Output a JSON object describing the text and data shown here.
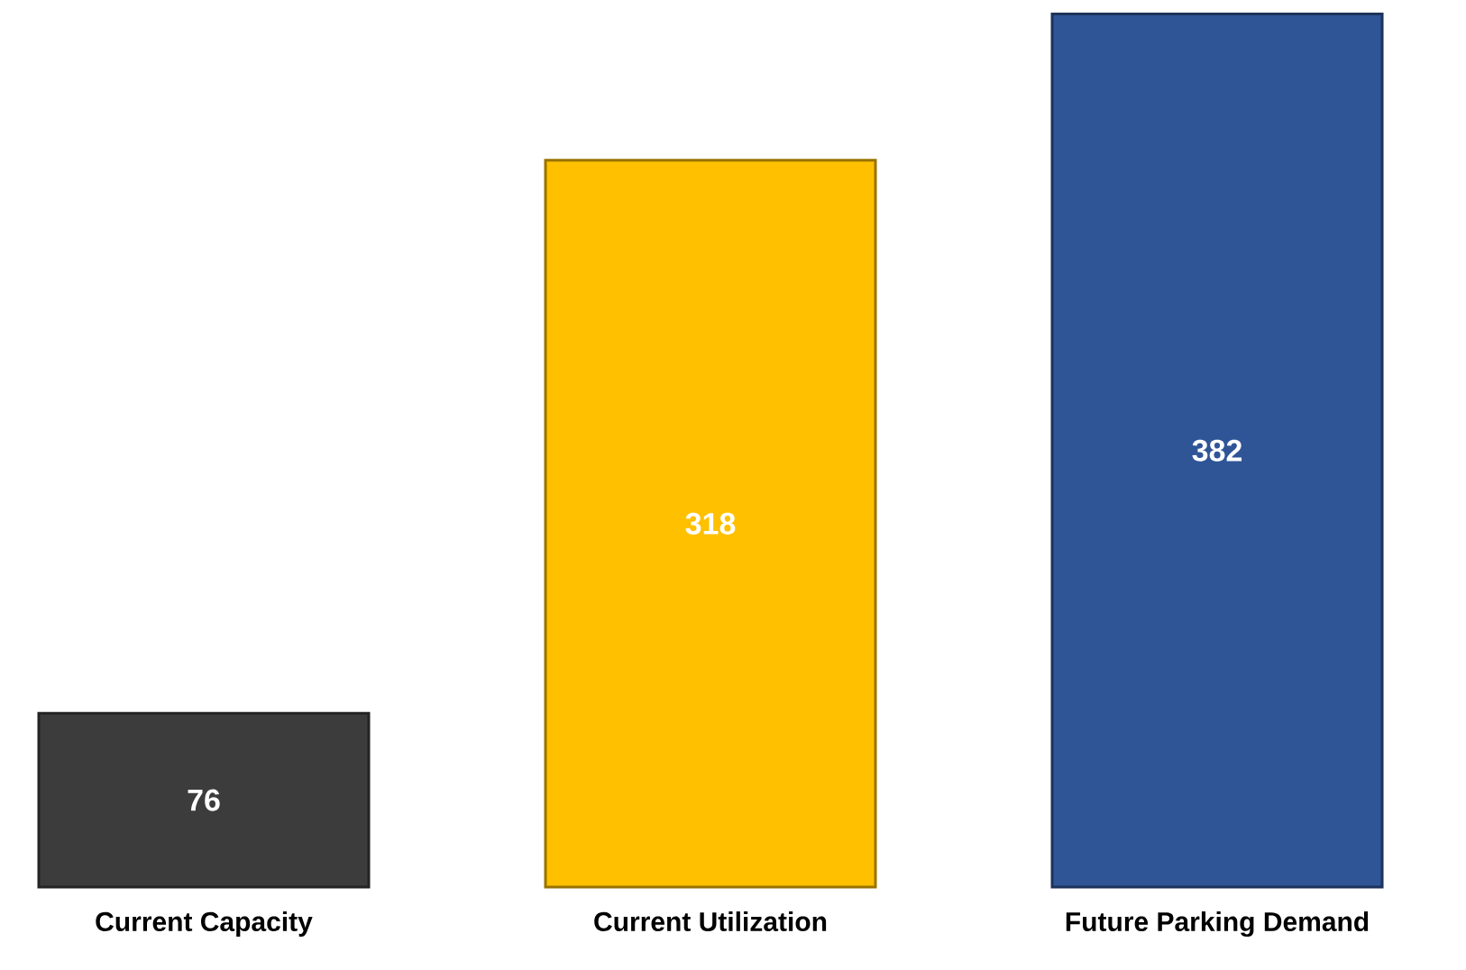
{
  "chart_data": {
    "type": "bar",
    "categories": [
      "Current Capacity",
      "Current Utilization",
      "Future Parking Demand"
    ],
    "values": [
      76,
      318,
      382
    ],
    "colors": [
      "#3c3c3c",
      "#ffc000",
      "#2f5597"
    ],
    "data_labels": true
  }
}
